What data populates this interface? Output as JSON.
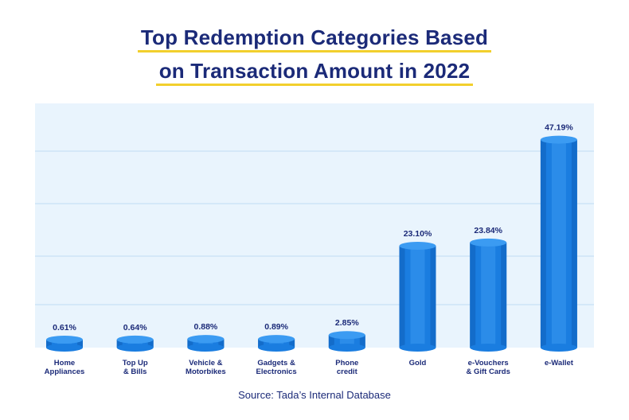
{
  "title_lines": [
    "Top Redemption Categories Based",
    "on Transaction Amount in 2022"
  ],
  "source": "Source: Tada’s Internal Database",
  "colors": {
    "title": "#1b2a78",
    "underline": "#f2cf2c",
    "plot_bg": "#e9f4fd",
    "gridline": "#bfdcf2",
    "bar_main": "#1a7de0",
    "bar_light": "#3b9bf2",
    "bar_dark": "#0f5fb8",
    "label": "#1b2a78"
  },
  "chart_data": {
    "type": "bar",
    "title": "Top Redemption Categories Based on Transaction Amount in 2022",
    "categories": [
      [
        "Home",
        "Appliances"
      ],
      [
        "Top Up",
        "& Bills"
      ],
      [
        "Vehicle &",
        "Motorbikes"
      ],
      [
        "Gadgets &",
        "Electronics"
      ],
      [
        "Phone",
        "credit"
      ],
      [
        "Gold"
      ],
      [
        "e-Vouchers",
        "& Gift Cards"
      ],
      [
        "e-Wallet"
      ]
    ],
    "values": [
      0.61,
      0.64,
      0.88,
      0.89,
      2.85,
      23.1,
      23.84,
      47.19
    ],
    "value_labels": [
      "0.61%",
      "0.64%",
      "0.88%",
      "0.89%",
      "2.85%",
      "23.10%",
      "23.84%",
      "47.19%"
    ],
    "grid": true,
    "ylim": [
      0,
      50
    ]
  }
}
